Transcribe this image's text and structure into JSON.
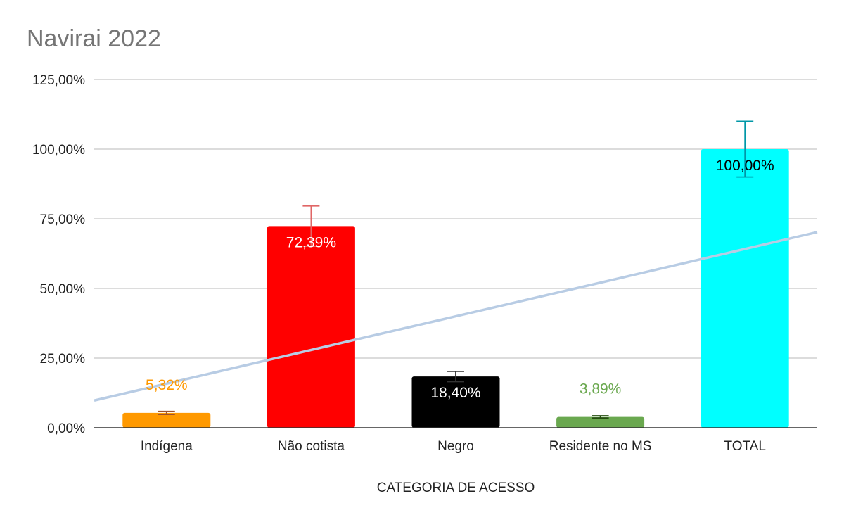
{
  "chart_data": {
    "type": "bar",
    "title": "Navirai 2022",
    "xlabel": "CATEGORIA DE ACESSO",
    "ylabel": "",
    "ylim": [
      0,
      125
    ],
    "yticks": [
      0,
      25,
      50,
      75,
      100,
      125
    ],
    "ytick_labels": [
      "0,00%",
      "25,00%",
      "50,00%",
      "75,00%",
      "100,00%",
      "125,00%"
    ],
    "grid": true,
    "legend": "none",
    "categories": [
      "Indígena",
      "Não cotista",
      "Negro",
      "Residente no MS",
      "TOTAL"
    ],
    "values": [
      5.32,
      72.39,
      18.4,
      3.89,
      100
    ],
    "value_labels": [
      "5,32%",
      "72,39%",
      "18,40%",
      "3,89%",
      "100,00%"
    ],
    "error_plus": [
      0.532,
      7.239,
      1.84,
      0.389,
      10
    ],
    "error_minus": [
      0.532,
      7.239,
      1.84,
      0.389,
      10
    ],
    "bar_colors": [
      "#ff9900",
      "#ff0000",
      "#000000",
      "#6aa84f",
      "#00ffff"
    ],
    "error_colors": [
      "#a0522d",
      "#e06666",
      "#333333",
      "#274e13",
      "#0097a7"
    ],
    "label_colors": [
      "#ff9900",
      "#ffffff",
      "#ffffff",
      "#6aa84f",
      "#000000"
    ],
    "label_position": [
      "above",
      "inside",
      "inside",
      "above",
      "inside"
    ],
    "trendline": {
      "type": "linear",
      "color": "#b8cce4"
    }
  }
}
